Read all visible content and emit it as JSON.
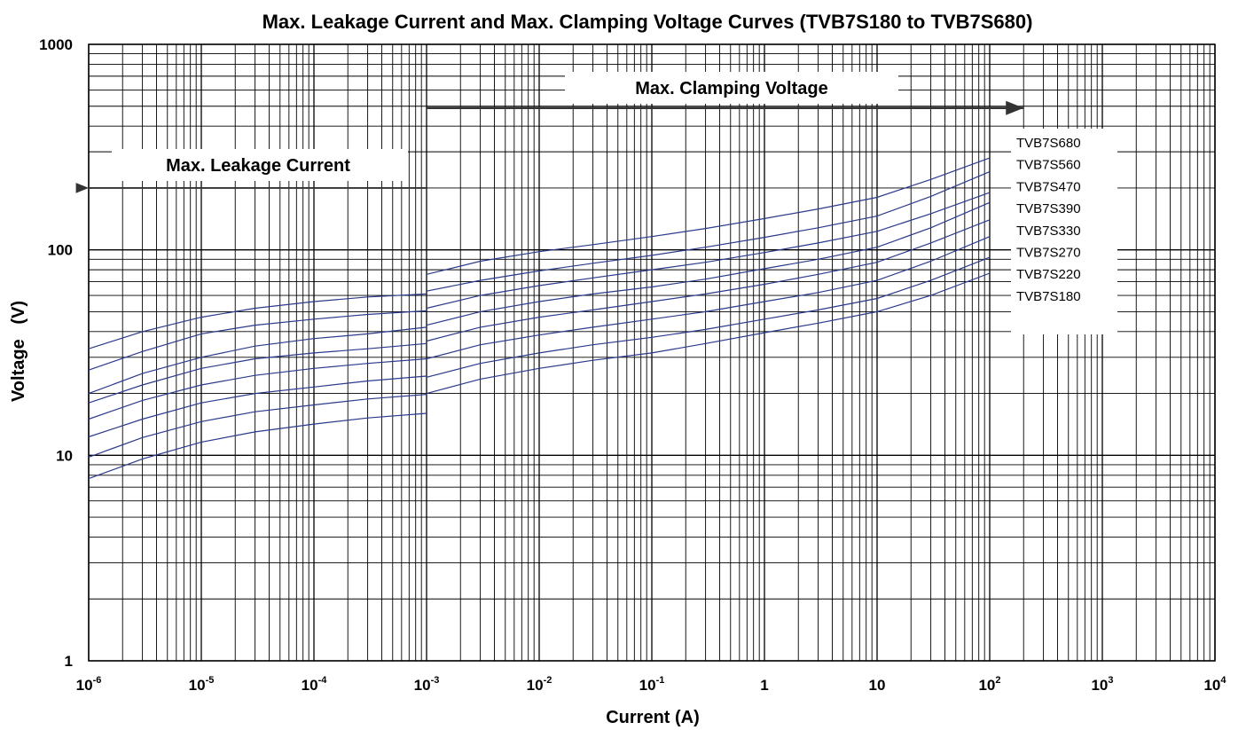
{
  "chart_data": {
    "type": "line",
    "title": "Max. Leakage Current and Max. Clamping Voltage Curves (TVB7S180 to TVB7S680)",
    "xlabel": "Current (A)",
    "ylabel": "Voltage   (V)",
    "x_scale": "log",
    "y_scale": "log",
    "xlim": [
      1e-06,
      10000
    ],
    "ylim": [
      1,
      1000
    ],
    "grid": true,
    "x_ticks": [
      {
        "value": 1e-06,
        "base": "10",
        "exp": "-6"
      },
      {
        "value": 1e-05,
        "base": "10",
        "exp": "-5"
      },
      {
        "value": 0.0001,
        "base": "10",
        "exp": "-4"
      },
      {
        "value": 0.001,
        "base": "10",
        "exp": "-3"
      },
      {
        "value": 0.01,
        "base": "10",
        "exp": "-2"
      },
      {
        "value": 0.1,
        "base": "10",
        "exp": "-1"
      },
      {
        "value": 1,
        "base": "1",
        "exp": ""
      },
      {
        "value": 10,
        "base": "10",
        "exp": ""
      },
      {
        "value": 100,
        "base": "10",
        "exp": "2"
      },
      {
        "value": 1000,
        "base": "10",
        "exp": "3"
      },
      {
        "value": 10000,
        "base": "10",
        "exp": "4"
      }
    ],
    "y_ticks": [
      {
        "value": 1,
        "label": "1"
      },
      {
        "value": 10,
        "label": "10"
      },
      {
        "value": 100,
        "label": "100"
      },
      {
        "value": 1000,
        "label": "1000"
      }
    ],
    "annotations": [
      {
        "text": "Max. Leakage Current",
        "direction": "left",
        "x_from": 1e-06,
        "x_to": 0.001,
        "y": 200
      },
      {
        "text": "Max. Clamping Voltage",
        "direction": "right",
        "x_from": 0.001,
        "x_to": 200,
        "y": 490
      }
    ],
    "series": [
      {
        "name": "TVB7S680",
        "leakage": {
          "x": [
            1e-06,
            3e-06,
            1e-05,
            3e-05,
            0.0001,
            0.0003,
            0.001
          ],
          "y": [
            33,
            40,
            47,
            52,
            56,
            59,
            61
          ]
        },
        "clamping": {
          "x": [
            0.001,
            0.003,
            0.01,
            0.03,
            0.1,
            0.3,
            1,
            3,
            10,
            30,
            100
          ],
          "y": [
            76,
            88,
            98,
            106,
            116,
            127,
            142,
            158,
            180,
            220,
            280
          ]
        }
      },
      {
        "name": "TVB7S560",
        "leakage": {
          "x": [
            1e-06,
            3e-06,
            1e-05,
            3e-05,
            0.0001,
            0.0003,
            0.001
          ],
          "y": [
            26,
            32,
            39,
            43,
            46,
            48.5,
            50.5
          ]
        },
        "clamping": {
          "x": [
            0.001,
            0.003,
            0.01,
            0.03,
            0.1,
            0.3,
            1,
            3,
            10,
            30,
            100
          ],
          "y": [
            63,
            71,
            79,
            86,
            94,
            103,
            115,
            128,
            146,
            182,
            240
          ]
        }
      },
      {
        "name": "TVB7S470",
        "leakage": {
          "x": [
            1e-06,
            3e-06,
            1e-05,
            3e-05,
            0.0001,
            0.0003,
            0.001
          ],
          "y": [
            20,
            25,
            30,
            34,
            37,
            39,
            42
          ]
        },
        "clamping": {
          "x": [
            0.001,
            0.003,
            0.01,
            0.03,
            0.1,
            0.3,
            1,
            3,
            10,
            30,
            100
          ],
          "y": [
            52,
            60,
            67,
            73,
            80,
            87,
            97,
            108,
            123,
            150,
            190
          ]
        }
      },
      {
        "name": "TVB7S390",
        "leakage": {
          "x": [
            1e-06,
            3e-06,
            1e-05,
            3e-05,
            0.0001,
            0.0003,
            0.001
          ],
          "y": [
            18,
            22,
            26.5,
            29.5,
            31.5,
            33,
            35
          ]
        },
        "clamping": {
          "x": [
            0.001,
            0.003,
            0.01,
            0.03,
            0.1,
            0.3,
            1,
            3,
            10,
            30,
            100
          ],
          "y": [
            43,
            50,
            56,
            61,
            66,
            72,
            81,
            90,
            103,
            128,
            170
          ]
        }
      },
      {
        "name": "TVB7S330",
        "leakage": {
          "x": [
            1e-06,
            3e-06,
            1e-05,
            3e-05,
            0.0001,
            0.0003,
            0.001
          ],
          "y": [
            15,
            18.5,
            22,
            24.5,
            26.5,
            28,
            29.5
          ]
        },
        "clamping": {
          "x": [
            0.001,
            0.003,
            0.01,
            0.03,
            0.1,
            0.3,
            1,
            3,
            10,
            30,
            100
          ],
          "y": [
            36,
            42,
            47,
            51,
            56,
            61,
            68,
            76,
            87,
            108,
            140
          ]
        }
      },
      {
        "name": "TVB7S270",
        "leakage": {
          "x": [
            1e-06,
            3e-06,
            1e-05,
            3e-05,
            0.0001,
            0.0003,
            0.001
          ],
          "y": [
            12.3,
            15,
            18,
            20,
            21.5,
            23,
            24.3
          ]
        },
        "clamping": {
          "x": [
            0.001,
            0.003,
            0.01,
            0.03,
            0.1,
            0.3,
            1,
            3,
            10,
            30,
            100
          ],
          "y": [
            29.5,
            34.5,
            38.5,
            42,
            46,
            50,
            56,
            62,
            71,
            88,
            116
          ]
        }
      },
      {
        "name": "TVB7S220",
        "leakage": {
          "x": [
            1e-06,
            3e-06,
            1e-05,
            3e-05,
            0.0001,
            0.0003,
            0.001
          ],
          "y": [
            9.8,
            12.2,
            14.6,
            16.3,
            17.6,
            18.8,
            19.8
          ]
        },
        "clamping": {
          "x": [
            0.001,
            0.003,
            0.01,
            0.03,
            0.1,
            0.3,
            1,
            3,
            10,
            30,
            100
          ],
          "y": [
            24,
            28,
            31.5,
            34.5,
            37.5,
            41,
            46,
            51,
            58,
            71,
            92
          ]
        }
      },
      {
        "name": "TVB7S180",
        "leakage": {
          "x": [
            1e-06,
            3e-06,
            1e-05,
            3e-05,
            0.0001,
            0.0003,
            0.001
          ],
          "y": [
            7.7,
            9.6,
            11.6,
            13,
            14.2,
            15.2,
            16
          ]
        },
        "clamping": {
          "x": [
            0.001,
            0.003,
            0.01,
            0.03,
            0.1,
            0.3,
            1,
            3,
            10,
            30,
            100
          ],
          "y": [
            20,
            23.5,
            26.5,
            29,
            31.5,
            35,
            39.5,
            44,
            50,
            60,
            77
          ]
        }
      }
    ],
    "colors": {
      "series_line": "#2b3a8c",
      "grid": "#000000",
      "annotation_arrow": "#333333"
    }
  }
}
